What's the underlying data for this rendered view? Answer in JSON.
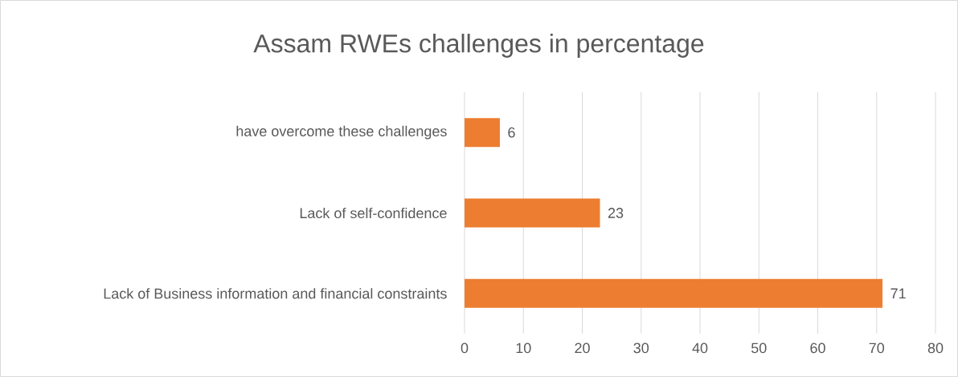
{
  "chart_data": {
    "type": "bar",
    "orientation": "horizontal",
    "title": "Assam RWEs challenges in percentage",
    "categories": [
      "have overcome these challenges",
      "Lack of self-confidence",
      "Lack of Business information and financial constraints"
    ],
    "values": [
      6,
      23,
      71
    ],
    "color": "#ed7d31",
    "xlim": [
      0,
      80
    ],
    "xticks": [
      0,
      10,
      20,
      30,
      40,
      50,
      60,
      70,
      80
    ],
    "grid": "x",
    "data_labels": true
  }
}
